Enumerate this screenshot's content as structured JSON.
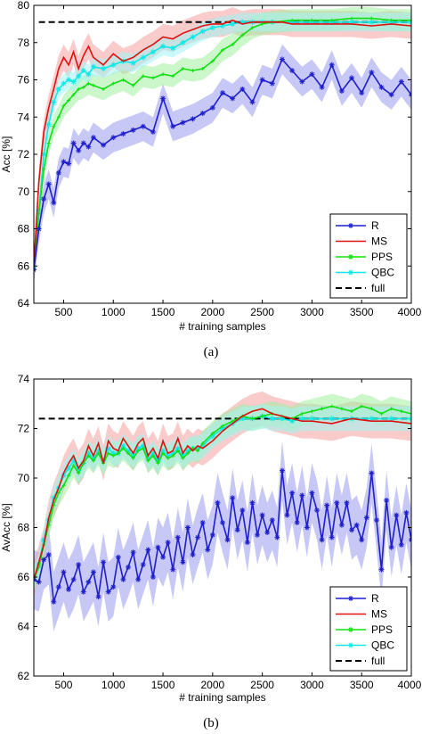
{
  "chart_data": [
    {
      "type": "line",
      "panel_caption": "(a)",
      "xlabel": "# training samples",
      "ylabel": "Acc [%]",
      "xlim": [
        200,
        4000
      ],
      "ylim": [
        64,
        80
      ],
      "xticks": [
        500,
        1000,
        1500,
        2000,
        2500,
        3000,
        3500,
        4000
      ],
      "yticks": [
        64,
        66,
        68,
        70,
        72,
        74,
        76,
        78,
        80
      ],
      "grid": false,
      "legend_position": "lower-right",
      "series": [
        {
          "name": "R",
          "color": "#1f1fcc",
          "band_color": "#9a9af0",
          "marker": "star",
          "x": [
            200,
            250,
            300,
            350,
            400,
            450,
            500,
            550,
            600,
            650,
            700,
            750,
            800,
            900,
            1000,
            1100,
            1200,
            1300,
            1400,
            1500,
            1600,
            1700,
            1800,
            1900,
            2000,
            2100,
            2200,
            2300,
            2400,
            2500,
            2600,
            2700,
            2800,
            2900,
            3000,
            3100,
            3200,
            3300,
            3400,
            3500,
            3600,
            3700,
            3800,
            3900,
            4000
          ],
          "y": [
            65.8,
            68.0,
            69.6,
            70.4,
            69.4,
            71.0,
            71.6,
            71.5,
            72.6,
            72.2,
            72.6,
            72.4,
            72.9,
            72.5,
            72.9,
            73.1,
            73.3,
            73.5,
            73.2,
            75.0,
            73.5,
            73.7,
            73.9,
            74.2,
            74.5,
            75.3,
            75.0,
            75.5,
            74.8,
            76.0,
            75.8,
            77.1,
            76.5,
            75.9,
            76.3,
            75.6,
            76.8,
            75.4,
            76.1,
            75.3,
            76.4,
            75.6,
            75.2,
            75.9,
            75.2
          ],
          "band_halfwidth": 0.8
        },
        {
          "name": "MS",
          "color": "#e01010",
          "band_color": "#f4a0a0",
          "x": [
            200,
            250,
            300,
            350,
            400,
            450,
            500,
            550,
            600,
            650,
            700,
            750,
            800,
            900,
            1000,
            1100,
            1200,
            1300,
            1400,
            1500,
            1600,
            1700,
            1800,
            1900,
            2000,
            2100,
            2200,
            2300,
            2400,
            2500,
            2600,
            2700,
            2800,
            2900,
            3000,
            3200,
            3400,
            3600,
            3800,
            4000
          ],
          "y": [
            66.0,
            70.5,
            73.2,
            74.5,
            75.5,
            76.6,
            77.2,
            76.8,
            77.5,
            76.6,
            77.3,
            77.8,
            77.2,
            76.8,
            77.4,
            77.0,
            77.2,
            77.6,
            77.9,
            78.3,
            78.2,
            78.5,
            78.7,
            78.9,
            79.0,
            79.0,
            79.2,
            79.0,
            79.1,
            79.1,
            79.1,
            79.1,
            79.0,
            79.0,
            79.0,
            79.0,
            79.0,
            78.9,
            79.0,
            78.9
          ],
          "band_halfwidth": 0.7
        },
        {
          "name": "PPS",
          "color": "#10e010",
          "band_color": "#a0f0a0",
          "marker": "plus",
          "x": [
            200,
            250,
            300,
            350,
            400,
            450,
            500,
            550,
            600,
            650,
            700,
            750,
            800,
            900,
            1000,
            1100,
            1200,
            1300,
            1400,
            1500,
            1600,
            1700,
            1800,
            1900,
            2000,
            2100,
            2200,
            2300,
            2400,
            2500,
            2600,
            2800,
            3000,
            3200,
            3400,
            3600,
            3800,
            4000
          ],
          "y": [
            65.9,
            68.8,
            71.2,
            72.6,
            73.5,
            74.0,
            74.6,
            74.9,
            75.2,
            75.5,
            75.6,
            75.8,
            75.7,
            75.5,
            75.8,
            76.0,
            75.7,
            76.2,
            76.1,
            76.3,
            76.2,
            76.6,
            76.5,
            76.6,
            77.0,
            77.6,
            77.9,
            78.4,
            78.8,
            79.0,
            79.1,
            79.2,
            79.2,
            79.2,
            79.3,
            79.3,
            79.2,
            79.2
          ],
          "band_halfwidth": 0.6
        },
        {
          "name": "QBC",
          "color": "#10e8e8",
          "band_color": "#a0f4f4",
          "marker": "star",
          "x": [
            200,
            250,
            300,
            350,
            400,
            450,
            500,
            550,
            600,
            650,
            700,
            750,
            800,
            900,
            1000,
            1100,
            1200,
            1300,
            1400,
            1500,
            1600,
            1700,
            1800,
            1900,
            2000,
            2100,
            2200,
            2300,
            2400,
            2500,
            2600,
            2800,
            3000,
            3200,
            3400,
            3600,
            3800,
            4000
          ],
          "y": [
            65.9,
            69.0,
            72.0,
            73.6,
            74.8,
            75.5,
            75.8,
            76.0,
            75.9,
            76.2,
            76.5,
            76.3,
            76.7,
            76.6,
            76.8,
            77.0,
            76.9,
            77.2,
            77.5,
            77.8,
            77.7,
            78.0,
            78.3,
            78.6,
            78.8,
            78.9,
            79.0,
            79.1,
            79.1,
            79.1,
            79.1,
            79.1,
            79.1,
            79.1,
            79.1,
            79.1,
            79.1,
            79.1
          ],
          "band_halfwidth": 0.5
        },
        {
          "name": "full",
          "color": "#000000",
          "style": "dashed",
          "x": [
            250,
            4000
          ],
          "y": [
            79.1,
            79.1
          ]
        }
      ]
    },
    {
      "type": "line",
      "panel_caption": "(b)",
      "xlabel": "# training samples",
      "ylabel": "AvAcc [%]",
      "xlim": [
        200,
        4000
      ],
      "ylim": [
        62,
        74
      ],
      "xticks": [
        500,
        1000,
        1500,
        2000,
        2500,
        3000,
        3500,
        4000
      ],
      "yticks": [
        62,
        64,
        66,
        68,
        70,
        72,
        74
      ],
      "grid": false,
      "legend_position": "lower-right",
      "series": [
        {
          "name": "R",
          "color": "#1f1fcc",
          "band_color": "#9a9af0",
          "marker": "star",
          "x": [
            200,
            250,
            300,
            350,
            400,
            450,
            500,
            550,
            600,
            650,
            700,
            750,
            800,
            850,
            900,
            950,
            1000,
            1050,
            1100,
            1150,
            1200,
            1250,
            1300,
            1350,
            1400,
            1450,
            1500,
            1550,
            1600,
            1650,
            1700,
            1750,
            1800,
            1850,
            1900,
            1950,
            2000,
            2050,
            2100,
            2150,
            2200,
            2250,
            2300,
            2350,
            2400,
            2450,
            2500,
            2550,
            2600,
            2650,
            2700,
            2750,
            2800,
            2850,
            2900,
            2950,
            3000,
            3050,
            3100,
            3150,
            3200,
            3250,
            3300,
            3350,
            3400,
            3450,
            3500,
            3550,
            3600,
            3650,
            3700,
            3750,
            3800,
            3850,
            3900,
            3950,
            4000
          ],
          "y": [
            65.9,
            65.8,
            66.7,
            66.9,
            65.0,
            65.6,
            66.2,
            65.5,
            65.9,
            66.5,
            65.4,
            65.8,
            66.2,
            65.2,
            66.6,
            65.4,
            65.6,
            66.8,
            65.9,
            66.4,
            67.0,
            65.9,
            66.5,
            67.1,
            66.0,
            67.2,
            66.8,
            67.4,
            66.3,
            67.6,
            66.6,
            68.0,
            66.9,
            67.6,
            68.2,
            67.1,
            67.7,
            69.0,
            68.2,
            67.5,
            69.2,
            67.9,
            68.7,
            67.4,
            69.0,
            67.7,
            68.5,
            67.8,
            68.3,
            67.6,
            70.3,
            68.5,
            69.4,
            68.2,
            69.3,
            68.0,
            69.4,
            68.7,
            67.5,
            68.9,
            67.6,
            69.0,
            68.1,
            69.0,
            67.9,
            68.1,
            67.5,
            68.4,
            70.2,
            68.3,
            66.3,
            69.1,
            67.2,
            68.5,
            67.3,
            68.6,
            67.5
          ],
          "band_halfwidth": 1.2
        },
        {
          "name": "MS",
          "color": "#e01010",
          "band_color": "#f4a0a0",
          "x": [
            200,
            250,
            300,
            350,
            400,
            450,
            500,
            550,
            600,
            650,
            700,
            750,
            800,
            850,
            900,
            950,
            1000,
            1050,
            1100,
            1150,
            1200,
            1250,
            1300,
            1350,
            1400,
            1450,
            1500,
            1550,
            1600,
            1650,
            1700,
            1750,
            1800,
            1850,
            1900,
            2000,
            2100,
            2200,
            2300,
            2400,
            2500,
            2600,
            2700,
            2800,
            2900,
            3000,
            3200,
            3400,
            3600,
            3800,
            4000
          ],
          "y": [
            65.9,
            66.6,
            67.3,
            68.4,
            69.1,
            69.6,
            70.2,
            70.6,
            70.9,
            70.4,
            70.7,
            71.3,
            70.9,
            71.4,
            70.6,
            71.5,
            71.2,
            71.1,
            71.6,
            71.3,
            71.0,
            71.4,
            71.6,
            70.9,
            71.2,
            70.8,
            71.5,
            71.0,
            71.1,
            71.6,
            71.0,
            71.3,
            71.1,
            71.3,
            71.2,
            71.5,
            71.9,
            72.2,
            72.5,
            72.7,
            72.8,
            72.6,
            72.5,
            72.4,
            72.3,
            72.3,
            72.2,
            72.4,
            72.3,
            72.3,
            72.2
          ],
          "band_halfwidth": 0.7
        },
        {
          "name": "PPS",
          "color": "#10e010",
          "band_color": "#a0f0a0",
          "marker": "plus",
          "x": [
            200,
            250,
            300,
            350,
            400,
            450,
            500,
            550,
            600,
            650,
            700,
            750,
            800,
            850,
            900,
            950,
            1000,
            1050,
            1100,
            1150,
            1200,
            1250,
            1300,
            1350,
            1400,
            1450,
            1500,
            1550,
            1600,
            1650,
            1700,
            1750,
            1800,
            1850,
            1900,
            2000,
            2100,
            2200,
            2300,
            2400,
            2500,
            2600,
            2700,
            2800,
            2900,
            3000,
            3100,
            3200,
            3300,
            3400,
            3500,
            3600,
            3700,
            3800,
            3900,
            4000
          ],
          "y": [
            65.9,
            66.4,
            67.3,
            68.1,
            68.9,
            69.4,
            69.7,
            70.1,
            70.5,
            70.2,
            70.6,
            70.9,
            70.7,
            71.0,
            70.6,
            71.0,
            70.9,
            71.0,
            71.2,
            71.0,
            70.8,
            71.1,
            71.2,
            70.7,
            70.9,
            70.6,
            71.0,
            70.8,
            70.9,
            71.1,
            70.8,
            71.0,
            71.2,
            71.1,
            71.4,
            71.8,
            72.1,
            72.3,
            72.5,
            72.4,
            72.5,
            72.6,
            72.5,
            72.4,
            72.6,
            72.7,
            72.8,
            72.9,
            72.8,
            72.7,
            72.9,
            72.8,
            72.6,
            72.8,
            72.7,
            72.6
          ],
          "band_halfwidth": 0.5
        },
        {
          "name": "QBC",
          "color": "#10e8e8",
          "band_color": "#a0f4f4",
          "marker": "star",
          "x": [
            200,
            250,
            300,
            350,
            400,
            450,
            500,
            550,
            600,
            650,
            700,
            750,
            800,
            850,
            900,
            950,
            1000,
            1050,
            1100,
            1150,
            1200,
            1250,
            1300,
            1350,
            1400,
            1450,
            1500,
            1550,
            1600,
            1650,
            1700,
            1750,
            1800,
            1850,
            1900,
            2000,
            2100,
            2200,
            2300,
            2400,
            2500,
            2600,
            2700,
            2800,
            2900,
            3000,
            3200,
            3400,
            3600,
            3800,
            4000
          ],
          "y": [
            65.9,
            66.5,
            67.5,
            68.3,
            69.2,
            69.6,
            70.1,
            70.4,
            70.7,
            70.3,
            70.6,
            71.0,
            70.8,
            71.1,
            70.7,
            71.2,
            71.0,
            71.0,
            71.3,
            71.1,
            70.9,
            71.2,
            71.3,
            70.8,
            71.0,
            70.7,
            71.1,
            70.9,
            71.0,
            71.2,
            70.9,
            71.1,
            71.2,
            71.2,
            71.3,
            71.7,
            72.0,
            72.2,
            72.4,
            72.4,
            72.5,
            72.4,
            72.4,
            72.3,
            72.4,
            72.4,
            72.4,
            72.4,
            72.4,
            72.4,
            72.4
          ],
          "band_halfwidth": 0.5
        },
        {
          "name": "full",
          "color": "#000000",
          "style": "dashed",
          "x": [
            250,
            4000
          ],
          "y": [
            72.4,
            72.4
          ]
        }
      ]
    }
  ]
}
